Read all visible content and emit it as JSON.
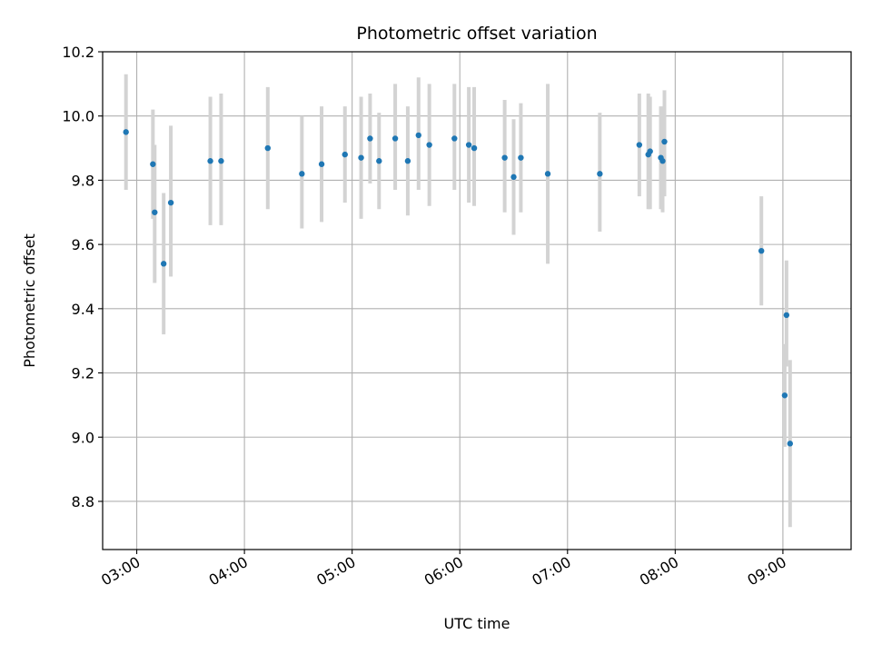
{
  "chart_data": {
    "type": "scatter",
    "title": "Photometric offset variation",
    "xlabel": "UTC time",
    "ylabel": "Photometric offset",
    "xlim": [
      "02:41",
      "09:38"
    ],
    "ylim": [
      8.65,
      10.2
    ],
    "grid": true,
    "x_ticks": [
      "03:00",
      "04:00",
      "05:00",
      "06:00",
      "07:00",
      "08:00",
      "09:00"
    ],
    "y_ticks": [
      "8.8",
      "9.0",
      "9.2",
      "9.4",
      "9.6",
      "9.8",
      "10.0",
      "10.2"
    ],
    "colors": {
      "points": "#1f77b4",
      "errorbars": "#d3d3d3",
      "grid": "#b0b0b0"
    },
    "points": [
      {
        "x": "02:54",
        "y": 9.95,
        "ylow": 9.77,
        "yhigh": 10.13
      },
      {
        "x": "03:09",
        "y": 9.85,
        "ylow": 9.68,
        "yhigh": 10.02
      },
      {
        "x": "03:10",
        "y": 9.7,
        "ylow": 9.48,
        "yhigh": 9.91
      },
      {
        "x": "03:15",
        "y": 9.54,
        "ylow": 9.32,
        "yhigh": 9.76
      },
      {
        "x": "03:19",
        "y": 9.73,
        "ylow": 9.5,
        "yhigh": 9.97
      },
      {
        "x": "03:41",
        "y": 9.86,
        "ylow": 9.66,
        "yhigh": 10.06
      },
      {
        "x": "03:47",
        "y": 9.86,
        "ylow": 9.66,
        "yhigh": 10.07
      },
      {
        "x": "04:13",
        "y": 9.9,
        "ylow": 9.71,
        "yhigh": 10.09
      },
      {
        "x": "04:32",
        "y": 9.82,
        "ylow": 9.65,
        "yhigh": 10.0
      },
      {
        "x": "04:43",
        "y": 9.85,
        "ylow": 9.67,
        "yhigh": 10.03
      },
      {
        "x": "04:56",
        "y": 9.88,
        "ylow": 9.73,
        "yhigh": 10.03
      },
      {
        "x": "05:05",
        "y": 9.87,
        "ylow": 9.68,
        "yhigh": 10.06
      },
      {
        "x": "05:10",
        "y": 9.93,
        "ylow": 9.79,
        "yhigh": 10.07
      },
      {
        "x": "05:15",
        "y": 9.86,
        "ylow": 9.71,
        "yhigh": 10.01
      },
      {
        "x": "05:24",
        "y": 9.93,
        "ylow": 9.77,
        "yhigh": 10.1
      },
      {
        "x": "05:31",
        "y": 9.86,
        "ylow": 9.69,
        "yhigh": 10.03
      },
      {
        "x": "05:37",
        "y": 9.94,
        "ylow": 9.77,
        "yhigh": 10.12
      },
      {
        "x": "05:43",
        "y": 9.91,
        "ylow": 9.72,
        "yhigh": 10.1
      },
      {
        "x": "05:57",
        "y": 9.93,
        "ylow": 9.77,
        "yhigh": 10.1
      },
      {
        "x": "06:05",
        "y": 9.91,
        "ylow": 9.73,
        "yhigh": 10.09
      },
      {
        "x": "06:08",
        "y": 9.9,
        "ylow": 9.72,
        "yhigh": 10.09
      },
      {
        "x": "06:25",
        "y": 9.87,
        "ylow": 9.7,
        "yhigh": 10.05
      },
      {
        "x": "06:30",
        "y": 9.81,
        "ylow": 9.63,
        "yhigh": 9.99
      },
      {
        "x": "06:34",
        "y": 9.87,
        "ylow": 9.7,
        "yhigh": 10.04
      },
      {
        "x": "06:49",
        "y": 9.82,
        "ylow": 9.54,
        "yhigh": 10.1
      },
      {
        "x": "07:18",
        "y": 9.82,
        "ylow": 9.64,
        "yhigh": 10.01
      },
      {
        "x": "07:40",
        "y": 9.91,
        "ylow": 9.75,
        "yhigh": 10.07
      },
      {
        "x": "07:45",
        "y": 9.88,
        "ylow": 9.71,
        "yhigh": 10.07
      },
      {
        "x": "07:46",
        "y": 9.89,
        "ylow": 9.71,
        "yhigh": 10.06
      },
      {
        "x": "07:52",
        "y": 9.87,
        "ylow": 9.71,
        "yhigh": 10.03
      },
      {
        "x": "07:53",
        "y": 9.86,
        "ylow": 9.7,
        "yhigh": 10.02
      },
      {
        "x": "07:54",
        "y": 9.92,
        "ylow": 9.75,
        "yhigh": 10.08
      },
      {
        "x": "08:48",
        "y": 9.58,
        "ylow": 9.41,
        "yhigh": 9.75
      },
      {
        "x": "09:01",
        "y": 9.13,
        "ylow": 8.97,
        "yhigh": 9.29
      },
      {
        "x": "09:02",
        "y": 9.38,
        "ylow": 9.22,
        "yhigh": 9.55
      },
      {
        "x": "09:04",
        "y": 8.98,
        "ylow": 8.72,
        "yhigh": 9.24
      }
    ]
  }
}
